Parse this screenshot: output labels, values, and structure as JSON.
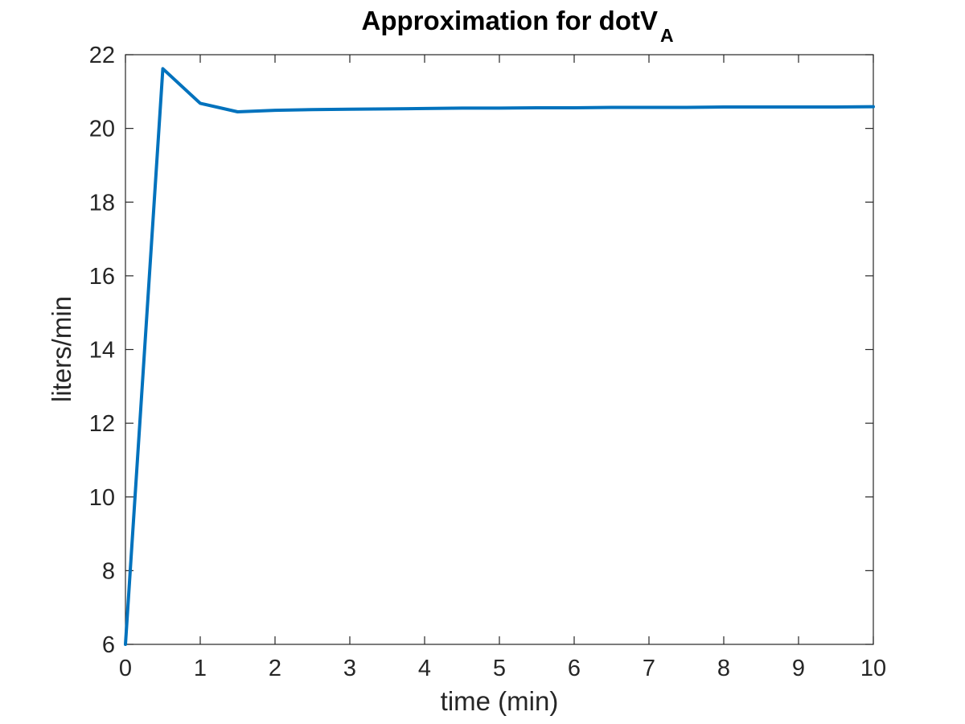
{
  "chart_data": {
    "type": "line",
    "title": "Approximation for dotV",
    "title_subscript": "A",
    "xlabel": "time (min)",
    "ylabel": "liters/min",
    "xlim": [
      0,
      10
    ],
    "ylim": [
      6,
      22
    ],
    "xticks": [
      0,
      1,
      2,
      3,
      4,
      5,
      6,
      7,
      8,
      9,
      10
    ],
    "yticks": [
      6,
      8,
      10,
      12,
      14,
      16,
      18,
      20,
      22
    ],
    "grid": false,
    "series": [
      {
        "color": "#0072BD",
        "x": [
          0,
          0.5,
          1,
          1.5,
          2,
          2.5,
          3,
          3.5,
          4,
          4.5,
          5,
          5.5,
          6,
          6.5,
          7,
          7.5,
          8,
          8.5,
          9,
          9.5,
          10
        ],
        "y": [
          6.0,
          21.62,
          20.68,
          20.45,
          20.49,
          20.51,
          20.52,
          20.53,
          20.54,
          20.55,
          20.55,
          20.56,
          20.56,
          20.57,
          20.57,
          20.57,
          20.58,
          20.58,
          20.58,
          20.58,
          20.59
        ]
      }
    ]
  }
}
